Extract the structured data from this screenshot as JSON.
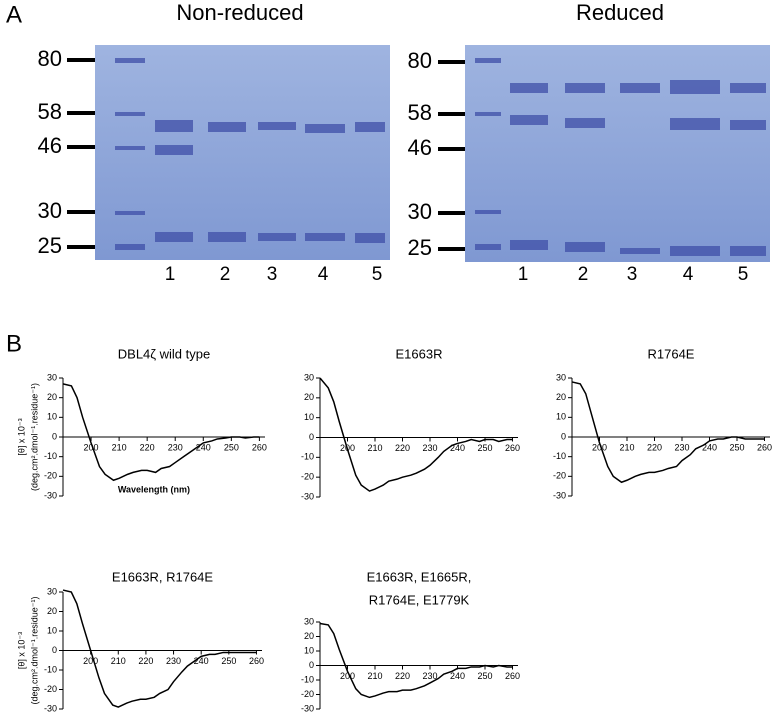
{
  "panel_a": {
    "label": "A",
    "gels": [
      {
        "title": "Non-reduced",
        "markers": [
          "80",
          "58",
          "46",
          "30",
          "25"
        ],
        "lanes": [
          "1",
          "2",
          "3",
          "4",
          "5"
        ]
      },
      {
        "title": "Reduced",
        "markers": [
          "80",
          "58",
          "46",
          "30",
          "25"
        ],
        "lanes": [
          "1",
          "2",
          "3",
          "4",
          "5"
        ]
      }
    ]
  },
  "panel_b": {
    "label": "B"
  },
  "chart_data": [
    {
      "type": "line",
      "title": "DBL4ζ wild type",
      "ylabel": [
        "[θ] x 10⁻³",
        "(deg.cm².dmol⁻¹.residue⁻¹)"
      ],
      "xlabel": "Wavelength (nm)",
      "x": [
        190,
        193,
        195,
        197,
        200,
        203,
        205,
        208,
        210,
        213,
        215,
        218,
        220,
        223,
        225,
        228,
        230,
        233,
        235,
        238,
        240,
        243,
        245,
        248,
        250,
        253,
        255,
        258,
        260
      ],
      "series": [
        {
          "color": "#000000",
          "values": [
            27,
            26,
            20,
            10,
            -3,
            -15,
            -19,
            -22,
            -21,
            -19,
            -18,
            -17,
            -17,
            -18,
            -16,
            -15,
            -13,
            -10,
            -8,
            -5,
            -3,
            -2,
            -1,
            -0.5,
            0,
            0,
            -0.5,
            0,
            0
          ]
        }
      ],
      "xlim": [
        190,
        262
      ],
      "ylim": [
        -30,
        30
      ],
      "xticks": [
        200,
        210,
        220,
        230,
        240,
        250,
        260
      ],
      "yticks": [
        -30,
        -20,
        -10,
        0,
        10,
        20,
        30
      ]
    },
    {
      "type": "line",
      "title": "E1663R",
      "x": [
        190,
        193,
        195,
        197,
        200,
        203,
        205,
        208,
        210,
        213,
        215,
        218,
        220,
        223,
        225,
        228,
        230,
        233,
        235,
        238,
        240,
        243,
        245,
        248,
        250,
        253,
        255,
        258,
        260
      ],
      "series": [
        {
          "color": "#000000",
          "values": [
            30,
            25,
            18,
            8,
            -6,
            -19,
            -24,
            -27,
            -26,
            -24,
            -22,
            -21,
            -20,
            -19,
            -18,
            -16,
            -14,
            -10,
            -7,
            -4,
            -3,
            -2,
            -1,
            -2,
            -1,
            -1,
            -2,
            -1,
            -1
          ]
        }
      ],
      "xlim": [
        190,
        262
      ],
      "ylim": [
        -30,
        30
      ],
      "xticks": [
        200,
        210,
        220,
        230,
        240,
        250,
        260
      ],
      "yticks": [
        -30,
        -20,
        -10,
        0,
        10,
        20,
        30
      ]
    },
    {
      "type": "line",
      "title": "R1764E",
      "x": [
        190,
        193,
        195,
        197,
        200,
        203,
        205,
        208,
        210,
        213,
        215,
        218,
        220,
        223,
        225,
        228,
        230,
        233,
        235,
        238,
        240,
        243,
        245,
        248,
        250,
        253,
        255,
        258,
        260
      ],
      "series": [
        {
          "color": "#000000",
          "values": [
            28,
            27,
            22,
            12,
            -3,
            -15,
            -20,
            -23,
            -22,
            -20,
            -19,
            -18,
            -18,
            -17,
            -16,
            -15,
            -12,
            -9,
            -6,
            -4,
            -2,
            -1,
            -1,
            0,
            0,
            -1,
            -1,
            -1,
            -1
          ]
        }
      ],
      "xlim": [
        190,
        262
      ],
      "ylim": [
        -30,
        30
      ],
      "xticks": [
        200,
        210,
        220,
        230,
        240,
        250,
        260
      ],
      "yticks": [
        -30,
        -20,
        -10,
        0,
        10,
        20,
        30
      ]
    },
    {
      "type": "line",
      "title": "E1663R, R1764E",
      "ylabel": [
        "[θ] x 10⁻³",
        "(deg.cm².dmol⁻¹.residue⁻¹)"
      ],
      "x": [
        190,
        193,
        195,
        197,
        200,
        203,
        205,
        208,
        210,
        213,
        215,
        218,
        220,
        223,
        225,
        228,
        230,
        233,
        235,
        238,
        240,
        243,
        245,
        248,
        250,
        253,
        255,
        258,
        260
      ],
      "series": [
        {
          "color": "#000000",
          "values": [
            31,
            30,
            24,
            14,
            0,
            -14,
            -22,
            -28,
            -29,
            -27,
            -26,
            -25,
            -25,
            -24,
            -22,
            -20,
            -16,
            -11,
            -8,
            -5,
            -3,
            -2,
            -2,
            -1,
            -1,
            -1,
            -1,
            -1,
            -1
          ]
        }
      ],
      "xlim": [
        190,
        262
      ],
      "ylim": [
        -30,
        30
      ],
      "xticks": [
        200,
        210,
        220,
        230,
        240,
        250,
        260
      ],
      "yticks": [
        -30,
        -20,
        -10,
        0,
        10,
        20,
        30
      ]
    },
    {
      "type": "line",
      "title": [
        "E1663R, E1665R,",
        "R1764E, E1779K"
      ],
      "x": [
        190,
        193,
        195,
        197,
        200,
        203,
        205,
        208,
        210,
        213,
        215,
        218,
        220,
        223,
        225,
        228,
        230,
        233,
        235,
        238,
        240,
        243,
        245,
        248,
        250,
        253,
        255,
        258,
        260
      ],
      "series": [
        {
          "color": "#000000",
          "values": [
            29,
            28,
            22,
            11,
            -4,
            -16,
            -20,
            -22,
            -21,
            -19,
            -18,
            -18,
            -17,
            -17,
            -16,
            -14,
            -12,
            -9,
            -6,
            -4,
            -2,
            -2,
            -1,
            -1,
            0,
            -1,
            0,
            -1,
            -1
          ]
        }
      ],
      "xlim": [
        190,
        262
      ],
      "ylim": [
        -30,
        30
      ],
      "xticks": [
        200,
        210,
        220,
        230,
        240,
        250,
        260
      ],
      "yticks": [
        -30,
        -20,
        -10,
        0,
        10,
        20,
        30
      ]
    }
  ]
}
